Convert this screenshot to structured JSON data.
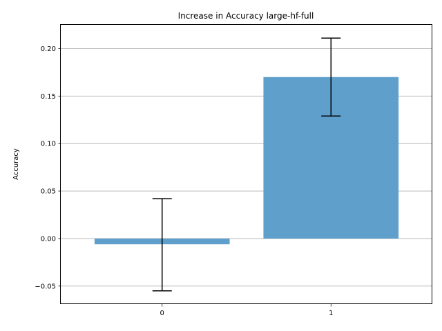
{
  "chart_data": {
    "type": "bar",
    "title": "Increase in Accuracy large-hf-full",
    "xlabel": "",
    "ylabel": "Accuracy",
    "categories": [
      "0",
      "1"
    ],
    "values": [
      -0.006,
      0.17
    ],
    "error_low": [
      -0.055,
      0.129
    ],
    "error_high": [
      0.042,
      0.211
    ],
    "ylim": [
      -0.069,
      0.225
    ],
    "yticks": [
      -0.05,
      0.0,
      0.05,
      0.1,
      0.15,
      0.2
    ],
    "ytick_labels": [
      "−0.05",
      "0.00",
      "0.05",
      "0.10",
      "0.15",
      "0.20"
    ],
    "grid": "y",
    "bar_color": "#5f9fcb",
    "error_color": "#000000"
  }
}
